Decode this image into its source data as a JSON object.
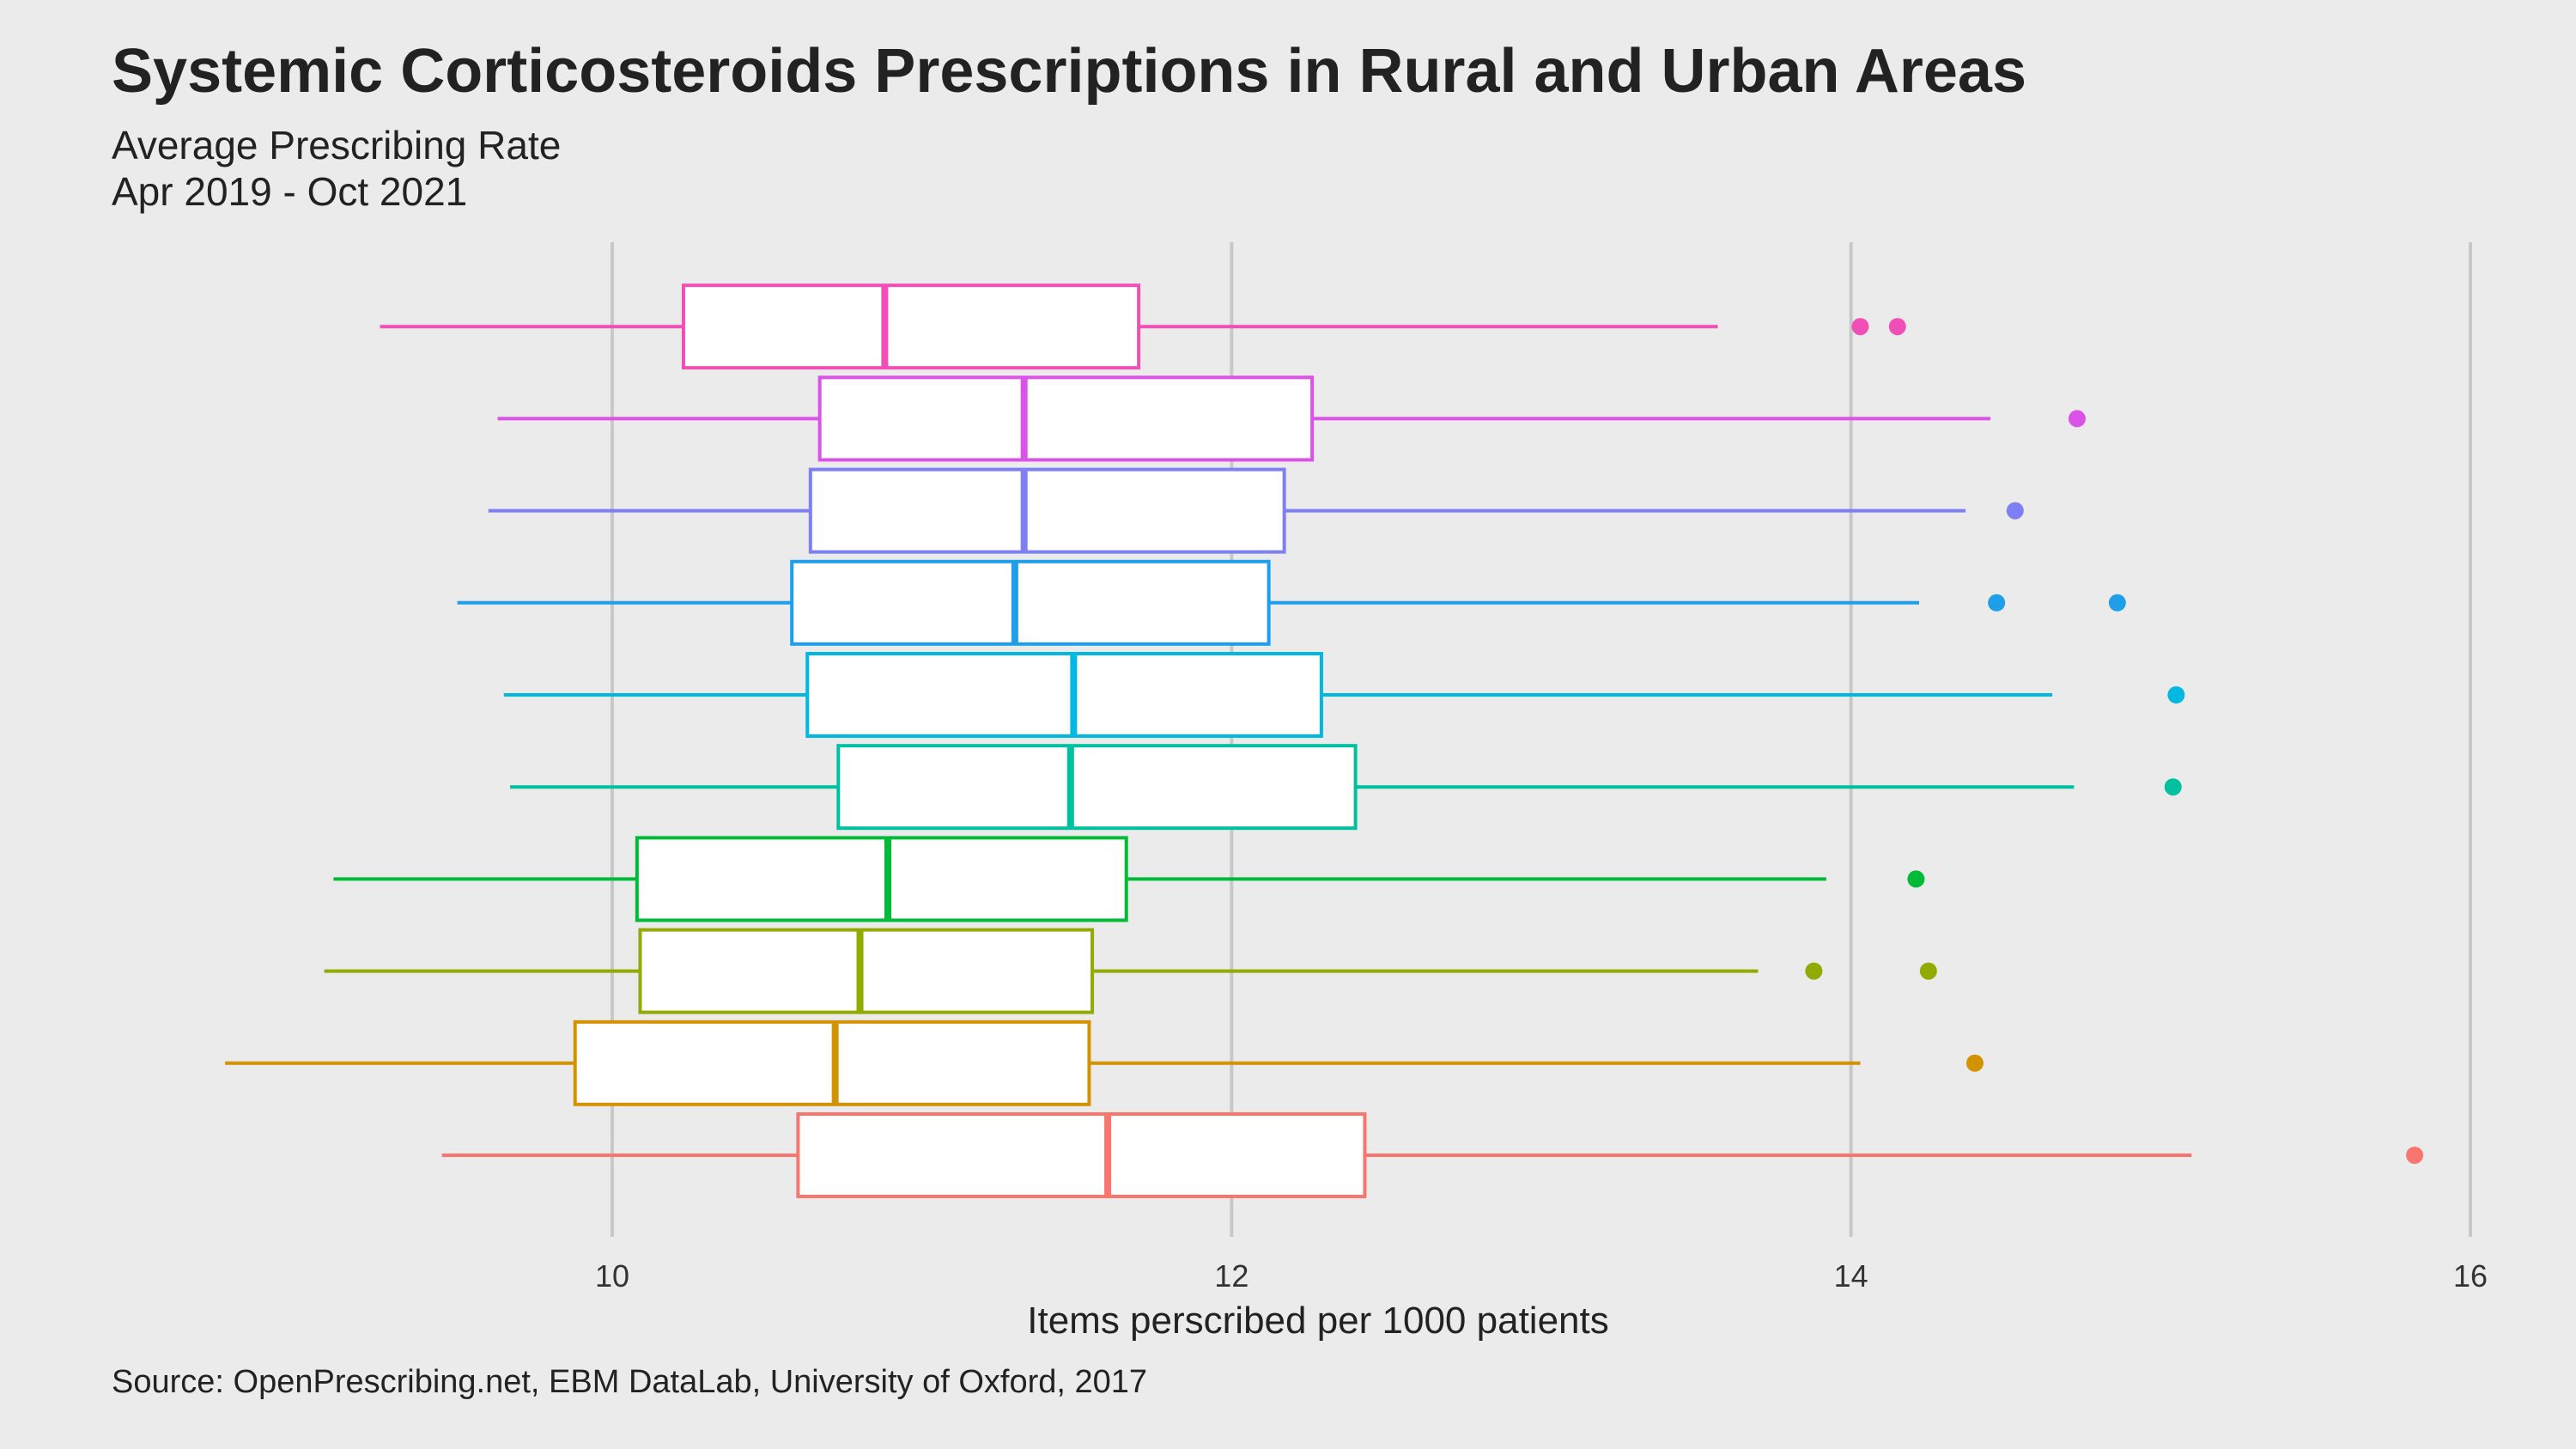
{
  "chart_data": {
    "type": "boxplot",
    "orientation": "horizontal",
    "title": "Systemic Corticosteroids Prescriptions in Rural and Urban Areas",
    "subtitle_line1": "Average Prescribing Rate",
    "subtitle_line2": "Apr 2019 - Oct 2021",
    "xlabel": "Items perscribed per 1000 patients",
    "ylabel": "",
    "caption": "Source: OpenPrescribing.net, EBM DataLab, University of Oxford, 2017",
    "xlim": [
      8.4,
      16.3
    ],
    "x_ticks": [
      10,
      12,
      14,
      16
    ],
    "x_tick_labels": [
      "10",
      "12",
      "14",
      "16"
    ],
    "grid": "vertical major",
    "legend": "none",
    "series": [
      {
        "color": "#F8766D",
        "whisker_low": 9.45,
        "q1": 10.6,
        "median": 11.6,
        "q3": 12.43,
        "whisker_high": 15.1,
        "outliers": [
          15.82
        ]
      },
      {
        "color": "#D39200",
        "whisker_low": 8.75,
        "q1": 9.88,
        "median": 10.72,
        "q3": 11.54,
        "whisker_high": 14.03,
        "outliers": [
          14.4
        ]
      },
      {
        "color": "#93AA00",
        "whisker_low": 9.07,
        "q1": 10.09,
        "median": 10.8,
        "q3": 11.55,
        "whisker_high": 13.7,
        "outliers": [
          13.88,
          14.25
        ]
      },
      {
        "color": "#00BA38",
        "whisker_low": 9.1,
        "q1": 10.08,
        "median": 10.89,
        "q3": 11.66,
        "whisker_high": 13.92,
        "outliers": [
          14.21
        ]
      },
      {
        "color": "#00C19F",
        "whisker_low": 9.67,
        "q1": 10.73,
        "median": 11.48,
        "q3": 12.4,
        "whisker_high": 14.72,
        "outliers": [
          15.04
        ]
      },
      {
        "color": "#00B9E3",
        "whisker_low": 9.65,
        "q1": 10.63,
        "median": 11.49,
        "q3": 12.29,
        "whisker_high": 14.65,
        "outliers": [
          15.05
        ]
      },
      {
        "color": "#1F9FEA",
        "whisker_low": 9.5,
        "q1": 10.58,
        "median": 11.3,
        "q3": 12.12,
        "whisker_high": 14.22,
        "outliers": [
          14.47,
          14.86
        ]
      },
      {
        "color": "#7F7FF5",
        "whisker_low": 9.6,
        "q1": 10.64,
        "median": 11.33,
        "q3": 12.17,
        "whisker_high": 14.37,
        "outliers": [
          14.53
        ]
      },
      {
        "color": "#DB52E8",
        "whisker_low": 9.63,
        "q1": 10.67,
        "median": 11.33,
        "q3": 12.26,
        "whisker_high": 14.45,
        "outliers": [
          14.73
        ]
      },
      {
        "color": "#F14FB7",
        "whisker_low": 9.25,
        "q1": 10.23,
        "median": 10.88,
        "q3": 11.7,
        "whisker_high": 13.57,
        "outliers": [
          14.03,
          14.15
        ]
      }
    ]
  }
}
